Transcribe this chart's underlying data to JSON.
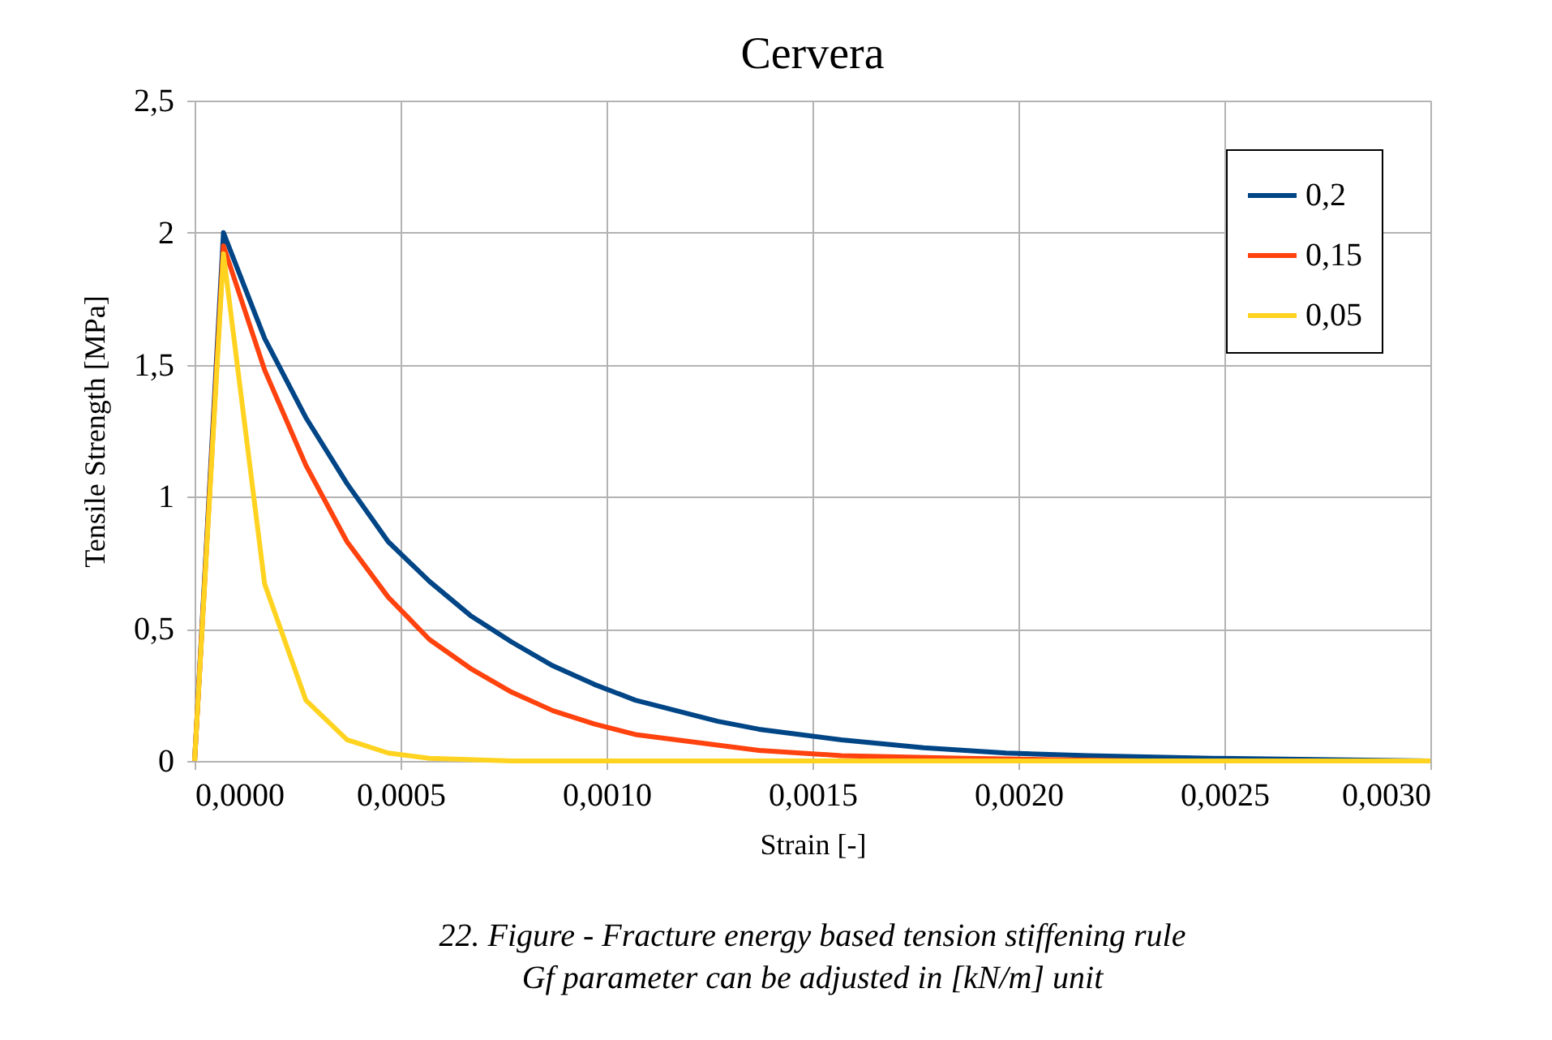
{
  "chart_data": {
    "type": "line",
    "title": "Cervera",
    "xlabel": "Strain [-]",
    "ylabel": "Tensile Strength [MPa]",
    "annotations": [
      "22. Figure - Fracture energy based tension stiffening rule",
      "Gf parameter can be adjusted in [kN/m] unit"
    ],
    "series": [
      {
        "name": "0,2",
        "color": "#004586",
        "x": [
          0,
          7e-05,
          0.00017,
          0.00027,
          0.00037,
          0.00047,
          0.00057,
          0.00067,
          0.00077,
          0.00087,
          0.00097,
          0.00107,
          0.00117,
          0.00127,
          0.00137,
          0.00147,
          0.00157,
          0.00177,
          0.00197,
          0.00217,
          0.00247,
          0.003
        ],
        "values": [
          0,
          2.0,
          1.6,
          1.3,
          1.05,
          0.83,
          0.68,
          0.55,
          0.45,
          0.36,
          0.29,
          0.23,
          0.19,
          0.15,
          0.12,
          0.1,
          0.08,
          0.05,
          0.03,
          0.02,
          0.01,
          0.0
        ]
      },
      {
        "name": "0,15",
        "color": "#ff420e",
        "x": [
          0,
          7e-05,
          0.00017,
          0.00027,
          0.00037,
          0.00047,
          0.00057,
          0.00067,
          0.00077,
          0.00087,
          0.00097,
          0.00107,
          0.00117,
          0.00127,
          0.00137,
          0.00157,
          0.00187,
          0.0023,
          0.003
        ],
        "values": [
          0,
          1.95,
          1.48,
          1.12,
          0.83,
          0.62,
          0.46,
          0.35,
          0.26,
          0.19,
          0.14,
          0.1,
          0.08,
          0.06,
          0.04,
          0.02,
          0.01,
          0.0,
          0.0
        ]
      },
      {
        "name": "0,05",
        "color": "#ffd320",
        "x": [
          0,
          7e-05,
          0.00017,
          0.00027,
          0.00037,
          0.00047,
          0.00057,
          0.00077,
          0.003
        ],
        "values": [
          0,
          1.92,
          0.67,
          0.23,
          0.08,
          0.03,
          0.01,
          0.0,
          0.0
        ]
      }
    ],
    "xlim": [
      0,
      0.003
    ],
    "ylim": [
      0,
      2.5
    ],
    "xticks": [
      {
        "value": 0,
        "label": "0,0000"
      },
      {
        "value": 0.0005,
        "label": "0,0005"
      },
      {
        "value": 0.001,
        "label": "0,0010"
      },
      {
        "value": 0.0015,
        "label": "0,0015"
      },
      {
        "value": 0.002,
        "label": "0,0020"
      },
      {
        "value": 0.0025,
        "label": "0,0025"
      },
      {
        "value": 0.003,
        "label": "0,0030"
      }
    ],
    "yticks": [
      0,
      {
        "value": 0.5,
        "label": "0,5"
      },
      1,
      {
        "value": 1.5,
        "label": "1,5"
      },
      2,
      {
        "value": 2.5,
        "label": "2,5"
      }
    ],
    "grid": true,
    "legend": "top right",
    "marker": "none",
    "line_style": "solid"
  }
}
